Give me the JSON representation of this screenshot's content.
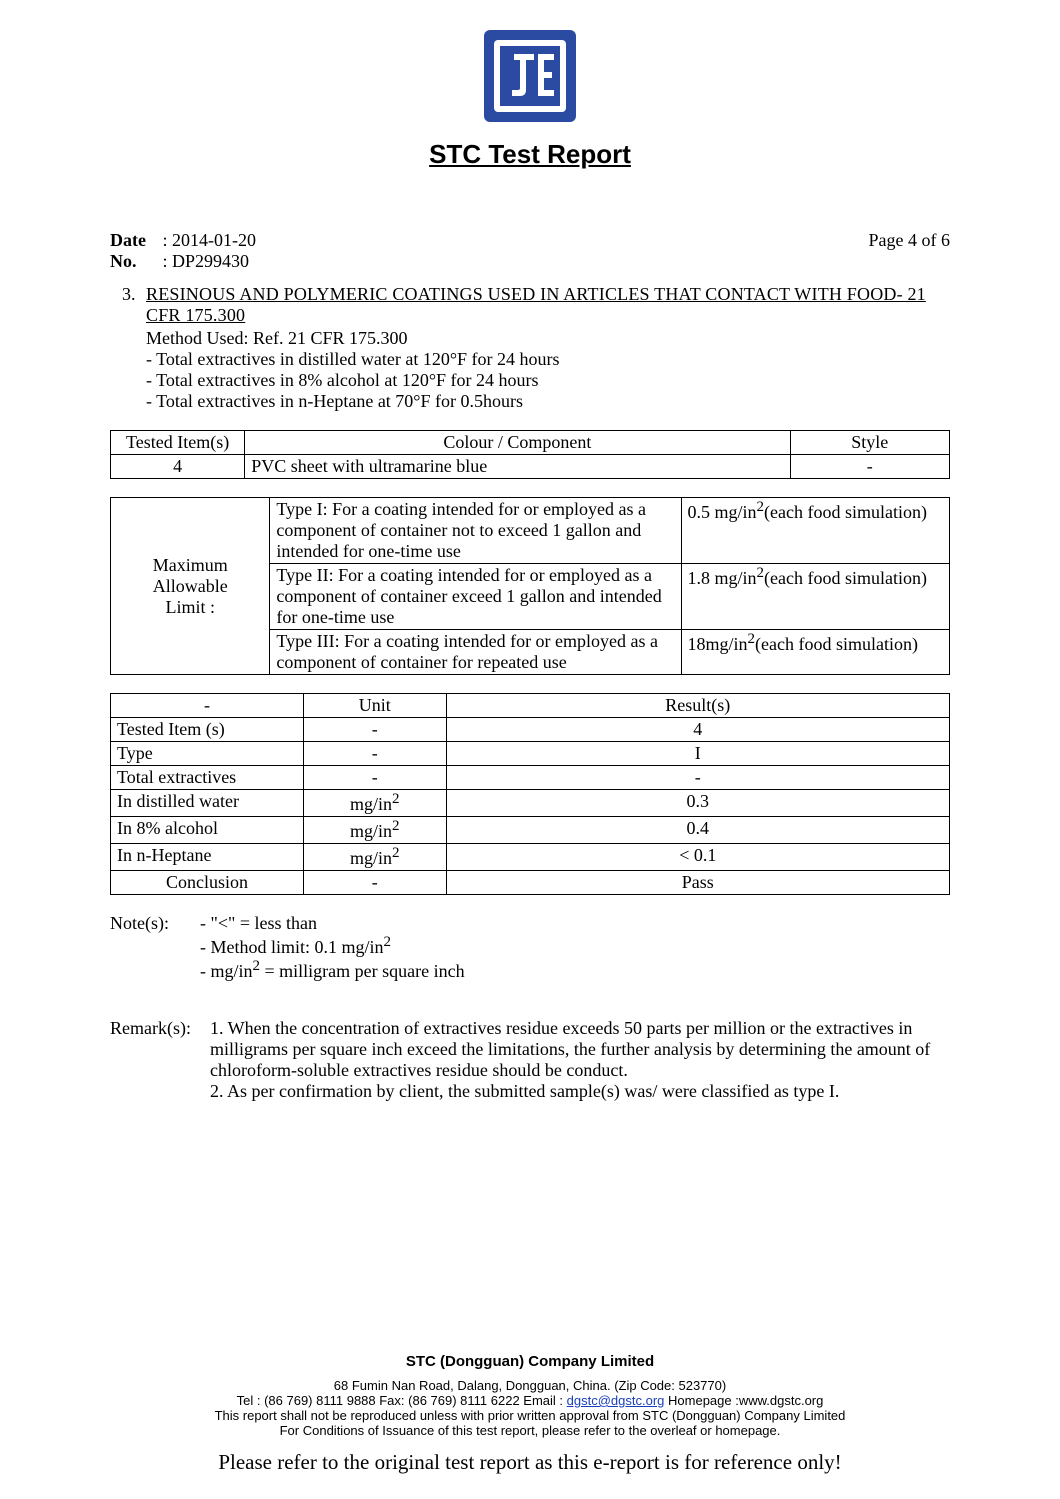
{
  "header": {
    "title": "STC Test Report",
    "logo_outer_color": "#2b4aa1",
    "logo_inner_bg": "#ffffff"
  },
  "meta": {
    "date_label": "Date",
    "date_value": "2014-01-20",
    "no_label": "No.",
    "no_value": "DP299430",
    "page_label": "Page 4 of 6"
  },
  "section": {
    "number": "3.",
    "title": "RESINOUS  AND  POLYMERIC  COATINGS  USED  IN  ARTICLES  THAT  CONTACT  WITH FOOD- 21 CFR 175.300",
    "method_used_label": "Method Used: Ref. 21 CFR 175.300",
    "method_lines": [
      "- Total extractives in distilled water at 120°F for 24 hours",
      "- Total extractives in 8% alcohol at 120°F for 24 hours",
      "- Total extractives in n-Heptane at 70°F for 0.5hours"
    ]
  },
  "item_table": {
    "headers": [
      "Tested Item(s)",
      "Colour / Component",
      "Style"
    ],
    "row": [
      "4",
      "PVC sheet with ultramarine blue",
      "-"
    ],
    "col_widths": [
      "16%",
      "65%",
      "19%"
    ]
  },
  "limit_table": {
    "label": "Maximum Allowable Limit :",
    "rows": [
      {
        "desc": "Type I: For a coating intended for or employed as a component of container not to exceed 1 gallon and intended for one-time use",
        "limit_pre": "0.5 mg/in",
        "limit_post": "(each food simulation)"
      },
      {
        "desc": "Type II: For a coating intended for or employed as a component of container exceed 1 gallon and intended for one-time use",
        "limit_pre": "1.8 mg/in",
        "limit_post": "(each food simulation)"
      },
      {
        "desc": "Type III: For a coating intended for or employed as a component of container for repeated use",
        "limit_pre": "18mg/in",
        "limit_post": "(each food simulation)"
      }
    ],
    "col_widths": [
      "19%",
      "49%",
      "32%"
    ]
  },
  "results_table": {
    "headers": [
      "-",
      "Unit",
      "Result(s)"
    ],
    "rows": [
      {
        "name": "Tested Item (s)",
        "unit": "-",
        "result": "4"
      },
      {
        "name": "Type",
        "unit": "-",
        "result": "I"
      },
      {
        "name": "Total extractives",
        "unit": "-",
        "result": "-"
      },
      {
        "name": "In distilled water",
        "unit_pre": "mg/in",
        "result": "0.3"
      },
      {
        "name": "In 8% alcohol",
        "unit_pre": "mg/in",
        "result": "0.4"
      },
      {
        "name": "In n-Heptane",
        "unit_pre": "mg/in",
        "result": "< 0.1"
      },
      {
        "name": "Conclusion",
        "unit": "-",
        "result": "Pass",
        "name_center": true
      }
    ],
    "col_widths": [
      "23%",
      "17%",
      "60%"
    ]
  },
  "notes": {
    "label": "Note(s):",
    "lines": [
      "- \"<\" = less than",
      "- Method limit: 0.1 mg/in²",
      "- mg/in² = milligram per square inch"
    ]
  },
  "remarks": {
    "label": "Remark(s):",
    "items": [
      "1. When the concentration of extractives residue exceeds 50 parts per million or the extractives in milligrams per square inch exceed the limitations, the further analysis by determining the amount of chloroform-soluble extractives residue should be conduct.",
      "2. As per confirmation by client, the submitted sample(s) was/ were classified as type I."
    ]
  },
  "footer": {
    "company": "STC (Dongguan) Company Limited",
    "address": "68 Fumin Nan Road, Dalang, Dongguan, China. (Zip Code: 523770)",
    "contact_pre": "Tel : (86 769) 8111 9888   Fax: (86 769) 8111 6222   Email : ",
    "email": "dgstc@dgstc.org",
    "contact_post": "   Homepage :www.dgstc.org",
    "line3": "This report shall not be reproduced unless with prior written approval from STC (Dongguan) Company Limited",
    "line4": "For Conditions of Issuance of this test report, please refer to the overleaf or homepage.",
    "ref_note": "Please refer to the original test report as this e-report is for reference only!"
  }
}
